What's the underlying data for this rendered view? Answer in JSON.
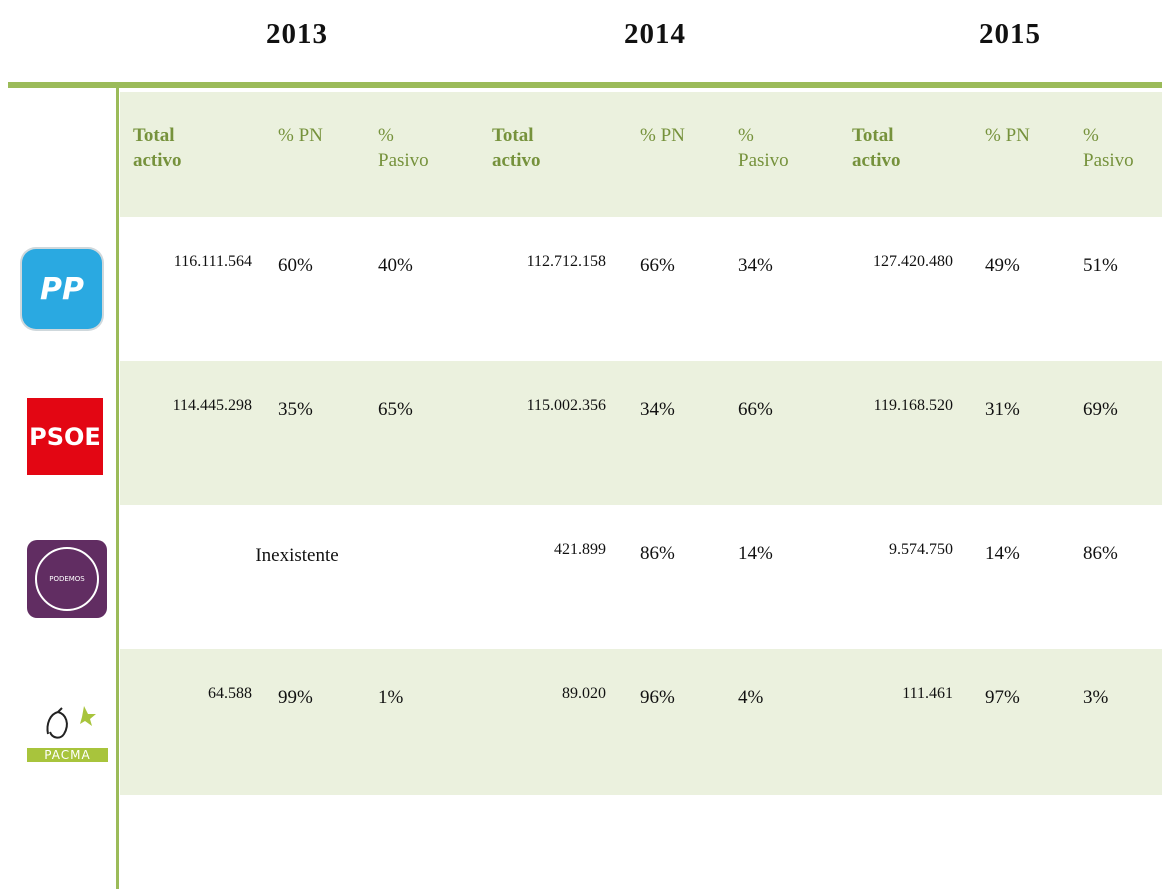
{
  "years": [
    "2013",
    "2014",
    "2015"
  ],
  "columns": [
    "Total activo",
    "% PN",
    "% Pasivo"
  ],
  "rows": [
    {
      "party": "PP",
      "years": [
        [
          "116.111.564",
          "60%",
          "40%"
        ],
        [
          "112.712.158",
          "66%",
          "34%"
        ],
        [
          "127.420.480",
          "49%",
          "51%"
        ]
      ]
    },
    {
      "party": "PSOE",
      "years": [
        [
          "114.445.298",
          "35%",
          "65%"
        ],
        [
          "115.002.356",
          "34%",
          "66%"
        ],
        [
          "119.168.520",
          "31%",
          "69%"
        ]
      ]
    },
    {
      "party": "PODEMOS",
      "years": [
        "Inexistente",
        [
          "421.899",
          "86%",
          "14%"
        ],
        [
          "9.574.750",
          "14%",
          "86%"
        ]
      ]
    },
    {
      "party": "PACMA",
      "years": [
        [
          "64.588",
          "99%",
          "1%"
        ],
        [
          "89.020",
          "96%",
          "4%"
        ],
        [
          "111.461",
          "97%",
          "3%"
        ]
      ]
    }
  ]
}
